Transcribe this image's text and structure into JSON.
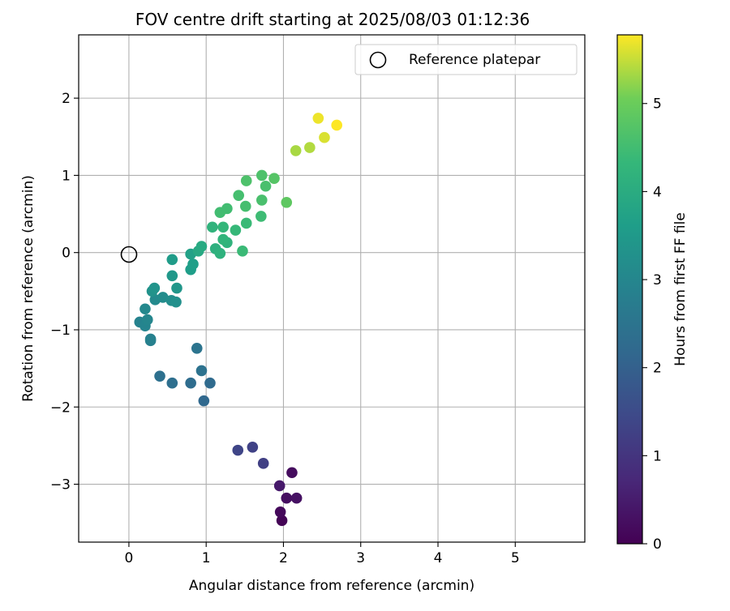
{
  "chart_data": {
    "type": "scatter",
    "title": "FOV centre drift starting at 2025/08/03 01:12:36",
    "xlabel": "Angular distance from reference (arcmin)",
    "ylabel": "Rotation from reference (arcmin)",
    "xlim": [
      -0.65,
      5.9
    ],
    "ylim": [
      -3.75,
      2.82
    ],
    "xticks": [
      0,
      1,
      2,
      3,
      4,
      5
    ],
    "yticks": [
      -3,
      -2,
      -1,
      0,
      1,
      2
    ],
    "xtick_labels": [
      "0",
      "1",
      "2",
      "3",
      "4",
      "5"
    ],
    "ytick_labels": [
      "−3",
      "−2",
      "−1",
      "0",
      "1",
      "2"
    ],
    "grid": true,
    "legend": {
      "position": "top-right",
      "entries": [
        "Reference platepar"
      ]
    },
    "reference_point": {
      "x": 0,
      "y": 0
    },
    "colorbar": {
      "label": "Hours from first FF file",
      "colormap": "viridis",
      "range": [
        0,
        5.78
      ],
      "ticks": [
        0,
        1,
        2,
        3,
        4,
        5
      ],
      "tick_labels": [
        "0",
        "1",
        "2",
        "3",
        "4",
        "5"
      ]
    },
    "points": [
      {
        "x": 1.98,
        "y": -3.47,
        "hours": 0.05
      },
      {
        "x": 1.96,
        "y": -3.36,
        "hours": 0.15
      },
      {
        "x": 2.04,
        "y": -3.18,
        "hours": 0.25
      },
      {
        "x": 2.17,
        "y": -3.18,
        "hours": 0.3
      },
      {
        "x": 2.11,
        "y": -2.85,
        "hours": 0.2
      },
      {
        "x": 1.95,
        "y": -3.02,
        "hours": 0.45
      },
      {
        "x": 1.74,
        "y": -2.73,
        "hours": 1.25
      },
      {
        "x": 1.6,
        "y": -2.52,
        "hours": 1.3
      },
      {
        "x": 1.41,
        "y": -2.56,
        "hours": 1.35
      },
      {
        "x": 0.97,
        "y": -1.92,
        "hours": 2.2
      },
      {
        "x": 1.05,
        "y": -1.69,
        "hours": 2.25
      },
      {
        "x": 0.8,
        "y": -1.69,
        "hours": 2.3
      },
      {
        "x": 0.56,
        "y": -1.69,
        "hours": 2.35
      },
      {
        "x": 0.4,
        "y": -1.6,
        "hours": 2.4
      },
      {
        "x": 0.94,
        "y": -1.53,
        "hours": 2.45
      },
      {
        "x": 0.88,
        "y": -1.24,
        "hours": 2.5
      },
      {
        "x": 0.28,
        "y": -1.14,
        "hours": 2.8
      },
      {
        "x": 0.28,
        "y": -1.12,
        "hours": 2.85
      },
      {
        "x": 0.14,
        "y": -0.9,
        "hours": 2.9
      },
      {
        "x": 0.21,
        "y": -0.95,
        "hours": 2.95
      },
      {
        "x": 0.24,
        "y": -0.87,
        "hours": 3.0
      },
      {
        "x": 0.21,
        "y": -0.73,
        "hours": 3.05
      },
      {
        "x": 0.34,
        "y": -0.61,
        "hours": 3.1
      },
      {
        "x": 0.44,
        "y": -0.58,
        "hours": 3.15
      },
      {
        "x": 0.55,
        "y": -0.62,
        "hours": 3.2
      },
      {
        "x": 0.61,
        "y": -0.64,
        "hours": 3.25
      },
      {
        "x": 0.3,
        "y": -0.5,
        "hours": 3.3
      },
      {
        "x": 0.33,
        "y": -0.46,
        "hours": 3.35
      },
      {
        "x": 0.62,
        "y": -0.46,
        "hours": 3.4
      },
      {
        "x": 0.56,
        "y": -0.3,
        "hours": 3.45
      },
      {
        "x": 0.56,
        "y": -0.09,
        "hours": 3.55
      },
      {
        "x": 0.8,
        "y": -0.22,
        "hours": 3.6
      },
      {
        "x": 0.83,
        "y": -0.15,
        "hours": 3.65
      },
      {
        "x": 0.8,
        "y": -0.02,
        "hours": 3.7
      },
      {
        "x": 0.9,
        "y": 0.02,
        "hours": 3.9
      },
      {
        "x": 0.94,
        "y": 0.08,
        "hours": 3.95
      },
      {
        "x": 1.12,
        "y": 0.05,
        "hours": 4.1
      },
      {
        "x": 1.18,
        "y": -0.01,
        "hours": 4.15
      },
      {
        "x": 1.27,
        "y": 0.13,
        "hours": 4.2
      },
      {
        "x": 1.22,
        "y": 0.17,
        "hours": 4.25
      },
      {
        "x": 1.08,
        "y": 0.33,
        "hours": 4.2
      },
      {
        "x": 1.22,
        "y": 0.33,
        "hours": 4.3
      },
      {
        "x": 1.38,
        "y": 0.29,
        "hours": 4.35
      },
      {
        "x": 1.47,
        "y": 0.02,
        "hours": 4.4
      },
      {
        "x": 1.52,
        "y": 0.38,
        "hours": 4.4
      },
      {
        "x": 1.71,
        "y": 0.47,
        "hours": 4.45
      },
      {
        "x": 1.18,
        "y": 0.52,
        "hours": 4.5
      },
      {
        "x": 1.27,
        "y": 0.57,
        "hours": 4.5
      },
      {
        "x": 1.51,
        "y": 0.6,
        "hours": 4.55
      },
      {
        "x": 1.42,
        "y": 0.74,
        "hours": 4.55
      },
      {
        "x": 1.72,
        "y": 0.68,
        "hours": 4.6
      },
      {
        "x": 1.77,
        "y": 0.86,
        "hours": 4.6
      },
      {
        "x": 1.52,
        "y": 0.93,
        "hours": 4.65
      },
      {
        "x": 1.72,
        "y": 1.0,
        "hours": 4.65
      },
      {
        "x": 1.88,
        "y": 0.96,
        "hours": 4.75
      },
      {
        "x": 2.04,
        "y": 0.65,
        "hours": 4.85
      },
      {
        "x": 2.16,
        "y": 1.32,
        "hours": 5.35
      },
      {
        "x": 2.34,
        "y": 1.36,
        "hours": 5.4
      },
      {
        "x": 2.53,
        "y": 1.49,
        "hours": 5.6
      },
      {
        "x": 2.45,
        "y": 1.74,
        "hours": 5.7
      },
      {
        "x": 2.69,
        "y": 1.65,
        "hours": 5.78
      }
    ]
  }
}
